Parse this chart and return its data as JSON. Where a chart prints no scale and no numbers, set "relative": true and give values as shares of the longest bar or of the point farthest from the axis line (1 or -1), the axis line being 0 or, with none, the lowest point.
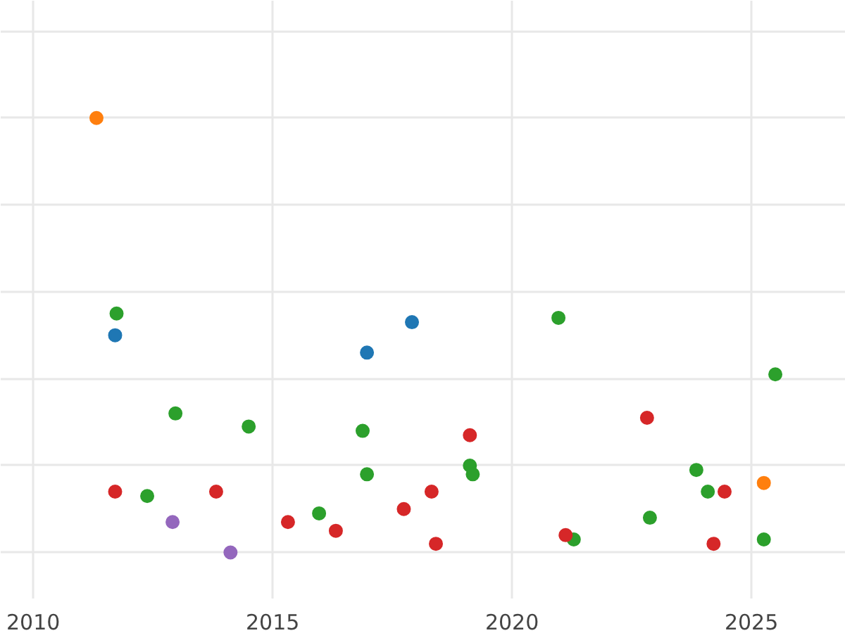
{
  "chart_data": {
    "type": "scatter",
    "relative": true,
    "xlim": [
      2009.32,
      2026.97
    ],
    "xticks": [
      2010,
      2015,
      2020,
      2025
    ],
    "grid": true,
    "marker": "circle",
    "series": [
      {
        "color": "#ff7f0e",
        "x": [
          2011.32,
          2025.26
        ],
        "values": [
          1.0,
          0.16
        ]
      },
      {
        "color": "#1f77b4",
        "x": [
          2011.71,
          2016.97,
          2017.91
        ],
        "values": [
          0.5,
          0.46,
          0.53
        ]
      },
      {
        "color": "#9467bd",
        "x": [
          2012.91,
          2014.12
        ],
        "values": [
          0.07,
          0.0
        ]
      },
      {
        "color": "#2ca02c",
        "x": [
          2011.74,
          2012.38,
          2012.97,
          2014.5,
          2015.97,
          2016.88,
          2016.97,
          2019.12,
          2019.18,
          2020.97,
          2021.29,
          2022.88,
          2023.85,
          2024.09,
          2025.26,
          2025.5
        ],
        "values": [
          0.55,
          0.13,
          0.32,
          0.29,
          0.09,
          0.28,
          0.18,
          0.2,
          0.18,
          0.54,
          0.03,
          0.08,
          0.19,
          0.14,
          0.03,
          0.41
        ]
      },
      {
        "color": "#d62728",
        "x": [
          2011.71,
          2013.82,
          2015.32,
          2016.32,
          2017.74,
          2018.32,
          2018.41,
          2019.12,
          2021.12,
          2022.82,
          2024.21,
          2024.44
        ],
        "values": [
          0.14,
          0.14,
          0.07,
          0.05,
          0.1,
          0.14,
          0.02,
          0.27,
          0.04,
          0.31,
          0.02,
          0.14
        ]
      }
    ]
  }
}
